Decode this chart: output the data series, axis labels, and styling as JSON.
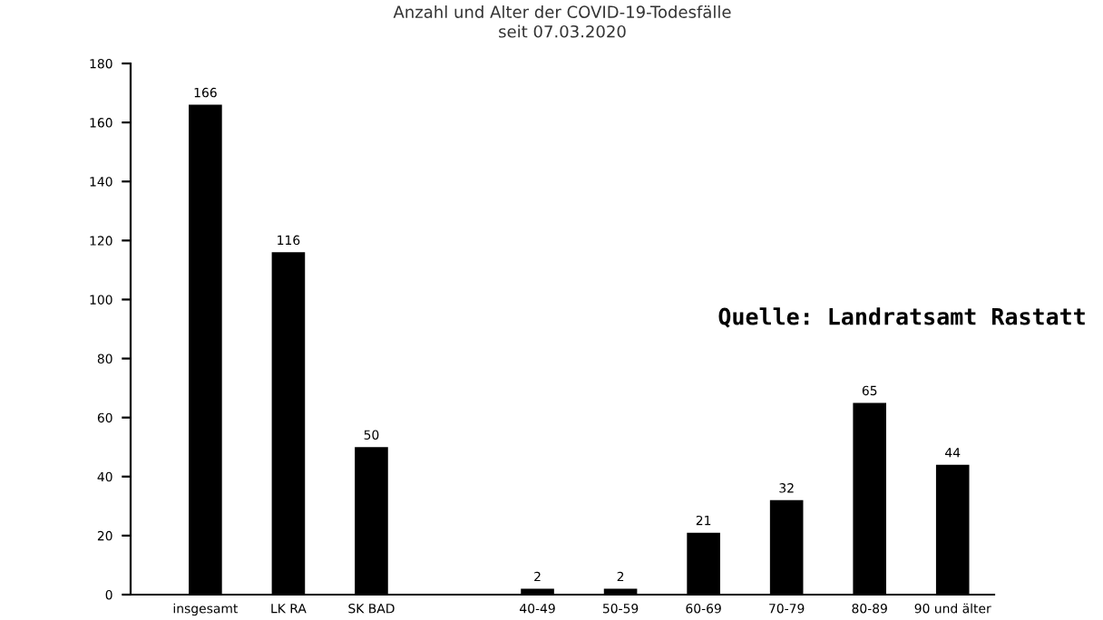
{
  "chart_data": {
    "type": "bar",
    "title": "Anzahl und Alter der COVID-19-Todesfälle\nseit 07.03.2020",
    "categories": [
      "insgesamt",
      "LK RA",
      "SK BAD",
      null,
      "40-49",
      "50-59",
      "60-69",
      "70-79",
      "80-89",
      "90 und älter"
    ],
    "values": [
      166,
      116,
      50,
      null,
      2,
      2,
      21,
      32,
      65,
      44
    ],
    "color": "#000000",
    "ylim": [
      0,
      180
    ],
    "yticks": [
      0,
      20,
      40,
      60,
      80,
      100,
      120,
      140,
      160,
      180
    ],
    "grid": false,
    "data_labels": true,
    "annotations": [
      "Quelle: Landratsamt Rastatt"
    ]
  }
}
